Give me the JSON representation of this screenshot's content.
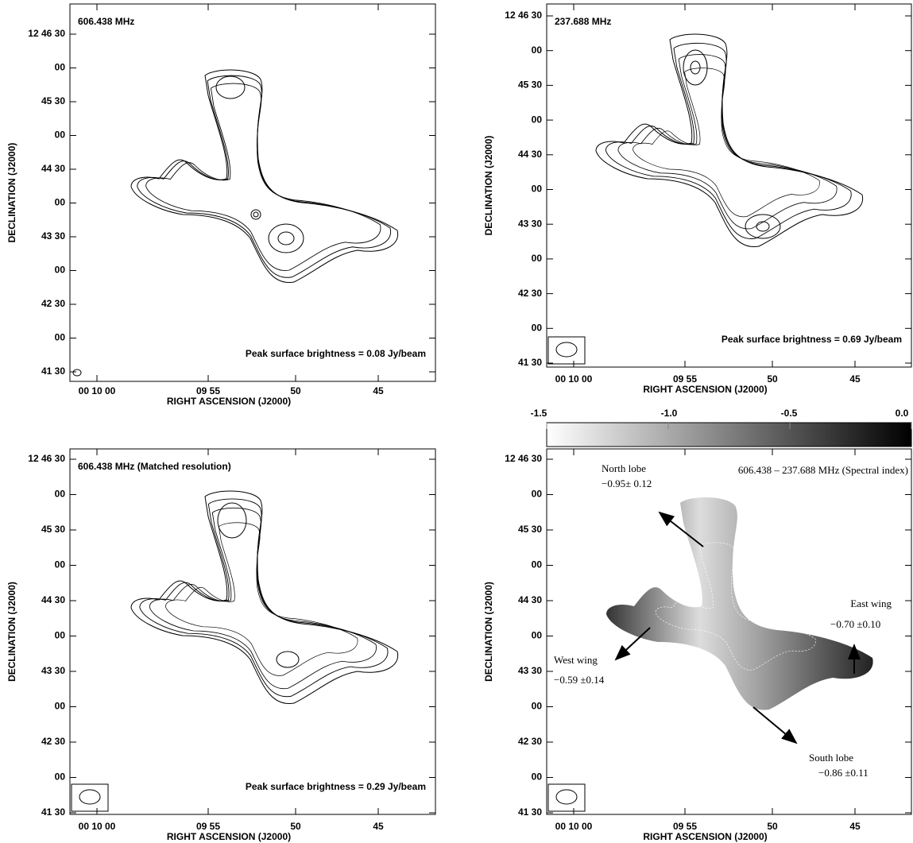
{
  "panels": [
    {
      "label": "606.438 MHz",
      "peak": "Peak surface brightness = 0.08 Jy/beam",
      "y_axis": {
        "label": "DECLINATION (J2000)",
        "ticks": [
          "12 46 30",
          "00",
          "45 30",
          "00",
          "44 30",
          "00",
          "43 30",
          "00",
          "42 30",
          "00",
          "41 30"
        ]
      },
      "x_axis": {
        "label": "RIGHT ASCENSION (J2000)",
        "ticks": [
          "00 10 00",
          "09 55",
          "50",
          "45"
        ]
      }
    },
    {
      "label": "237.688 MHz",
      "peak": "Peak surface brightness = 0.69 Jy/beam",
      "y_axis": {
        "label": "DECLINATION (J2000)",
        "ticks": [
          "12 46 30",
          "00",
          "45 30",
          "00",
          "44 30",
          "00",
          "43 30",
          "00",
          "42 30",
          "00",
          "41 30"
        ]
      },
      "x_axis": {
        "label": "RIGHT ASCENSION (J2000)",
        "ticks": [
          "00 10 00",
          "09 55",
          "50",
          "45"
        ]
      }
    },
    {
      "label": "606.438 MHz (Matched resolution)",
      "peak": "Peak surface brightness = 0.29 Jy/beam",
      "y_axis": {
        "label": "DECLINATION (J2000)",
        "ticks": [
          "12 46 30",
          "00",
          "45 30",
          "00",
          "44 30",
          "00",
          "43 30",
          "00",
          "42 30",
          "00",
          "41 30"
        ]
      },
      "x_axis": {
        "label": "RIGHT ASCENSION (J2000)",
        "ticks": [
          "00 10 00",
          "09 55",
          "50",
          "45"
        ]
      }
    },
    {
      "label": "606.438 – 237.688 MHz (Spectral index)",
      "y_axis": {
        "label": "DECLINATION (J2000)",
        "ticks": [
          "12 46 30",
          "00",
          "45 30",
          "00",
          "44 30",
          "00",
          "43 30",
          "00",
          "42 30",
          "00",
          "41 30"
        ]
      },
      "x_axis": {
        "label": "RIGHT ASCENSION (J2000)",
        "ticks": [
          "00 10 00",
          "09 55",
          "50",
          "45"
        ]
      }
    }
  ],
  "colorbar": {
    "ticks": [
      "-1.5",
      "-1.0",
      "-0.5",
      "0.0"
    ]
  },
  "annotations": [
    {
      "name": "North lobe",
      "index": "−0.95± 0.12"
    },
    {
      "name": "East wing",
      "index": "−0.70 ±0.10"
    },
    {
      "name": "West wing",
      "index": "−0.59 ±0.14"
    },
    {
      "name": "South lobe",
      "index": "−0.86 ±0.11"
    }
  ]
}
